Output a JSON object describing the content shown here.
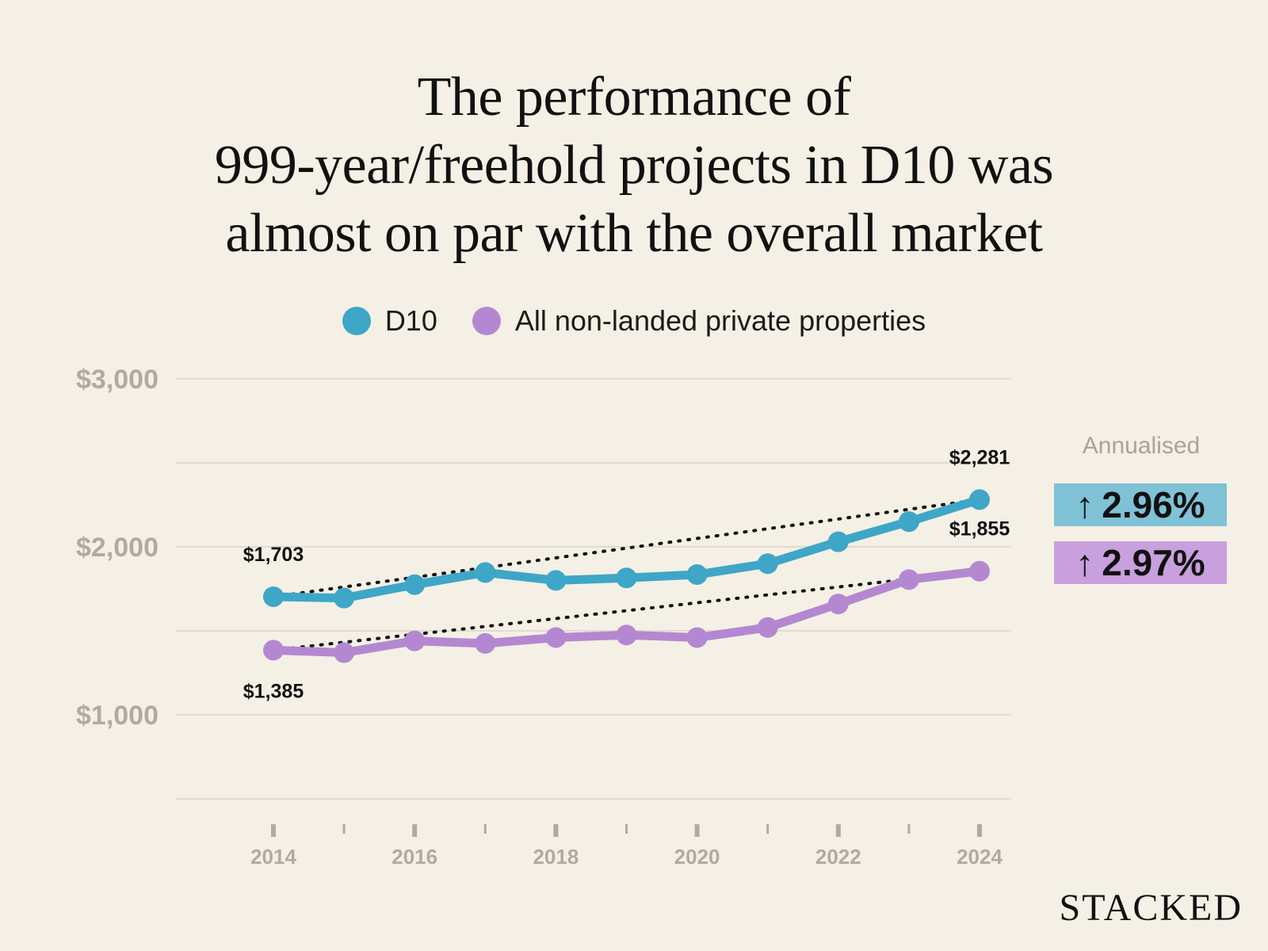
{
  "colors": {
    "background": "#f5f0e5",
    "d10": "#3ea6c7",
    "all": "#b488d1",
    "grid": "#e2dbcf",
    "axis_text": "#b1aa9e",
    "badge_d10": "#7fc2d6",
    "badge_all": "#c8a0dd"
  },
  "title_lines": [
    "The performance of",
    "999-year/freehold projects in D10 was",
    "almost on par with the overall market"
  ],
  "legend": {
    "d10": "D10",
    "all": "All non-landed private properties"
  },
  "annualised": {
    "label": "Annualised",
    "d10_value": "2.96%",
    "all_value": "2.97%",
    "arrow": "↑"
  },
  "brand": "STACKED",
  "chart_data": {
    "type": "line",
    "title": "The performance of 999-year/freehold projects in D10 was almost on par with the overall market",
    "xlabel": "",
    "ylabel": "",
    "x": [
      2014,
      2015,
      2016,
      2017,
      2018,
      2019,
      2020,
      2021,
      2022,
      2023,
      2024
    ],
    "x_tick_labels": [
      "2014",
      "2016",
      "2018",
      "2020",
      "2022",
      "2024"
    ],
    "ylim": [
      500,
      3000
    ],
    "y_gridlines": [
      500,
      1000,
      1500,
      2000,
      2500,
      3000
    ],
    "y_tick_values": [
      1000,
      2000,
      3000
    ],
    "y_tick_labels": [
      "$1,000",
      "$2,000",
      "$3,000"
    ],
    "series": [
      {
        "name": "D10",
        "values": [
          1703,
          1695,
          1775,
          1847,
          1800,
          1815,
          1835,
          1900,
          2030,
          2150,
          2281
        ],
        "trendline": true,
        "labels": [
          {
            "index": 0,
            "text": "$1,703",
            "position": "above"
          },
          {
            "index": 10,
            "text": "$2,281",
            "position": "above"
          }
        ]
      },
      {
        "name": "All non-landed private properties",
        "values": [
          1385,
          1370,
          1440,
          1425,
          1460,
          1475,
          1460,
          1520,
          1660,
          1805,
          1855
        ],
        "trendline": true,
        "labels": [
          {
            "index": 0,
            "text": "$1,385",
            "position": "below"
          },
          {
            "index": 10,
            "text": "$1,855",
            "position": "above"
          }
        ]
      }
    ]
  }
}
